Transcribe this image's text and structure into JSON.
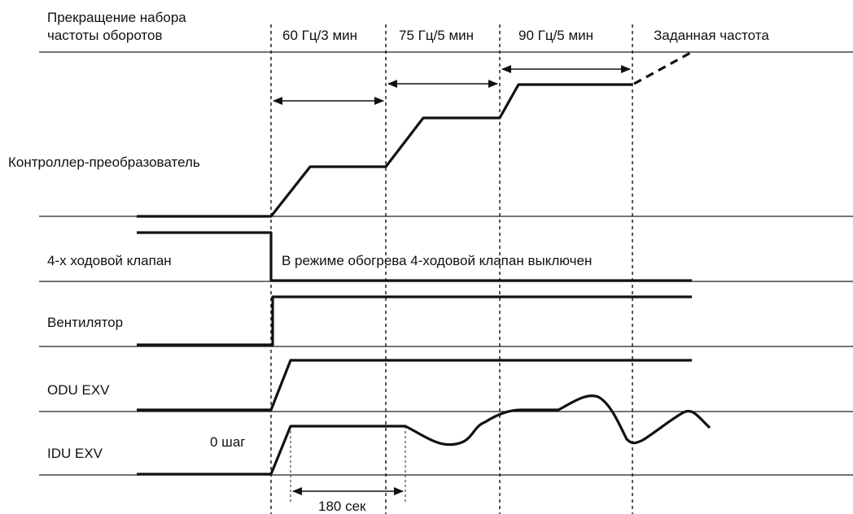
{
  "header": {
    "title_line1": "Прекращение набора",
    "title_line2": "частоты оборотов",
    "stage1": "60 Гц/3 мин",
    "stage2": "75 Гц/5 мин",
    "stage3": "90 Гц/5 мин",
    "target": "Заданная частота"
  },
  "rows": {
    "controller": "Контроллер-преобразователь",
    "valve4way": "4-х ходовой клапан",
    "valve_note": "В режиме обогрева  4-ходовой клапан выключен",
    "fan": "Вентилятор",
    "odu_exv": "ODU EXV",
    "idu_exv": "IDU EXV",
    "idu_step": "0 шаг"
  },
  "timing": {
    "duration": "180 сек"
  }
}
